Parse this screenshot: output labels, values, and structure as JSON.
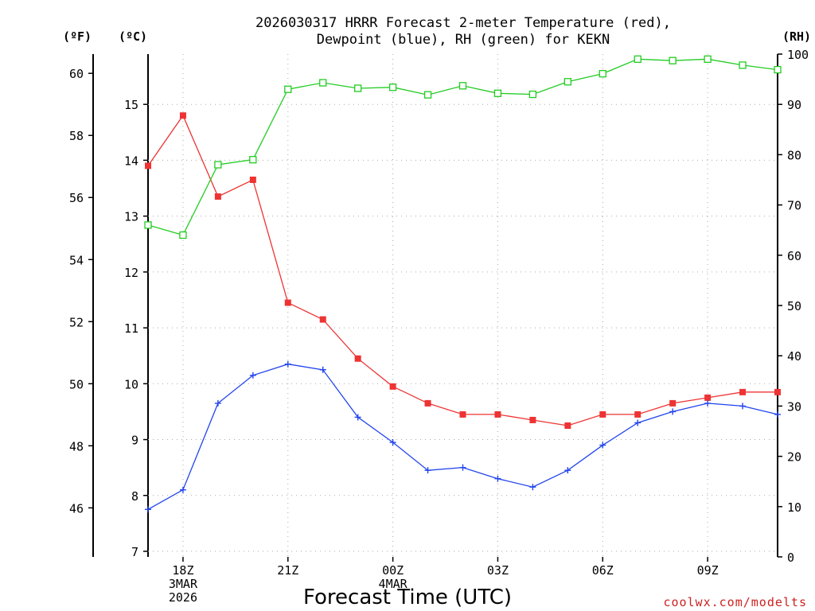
{
  "chart_data": {
    "type": "line",
    "title": [
      "2026030317 HRRR Forecast 2-meter Temperature (red),",
      "Dewpoint (blue), RH (green) for KEKN"
    ],
    "xlabel": "Forecast Time (UTC)",
    "credit": "coolwx.com/modelts",
    "left_axis_unit": "(ºC)",
    "far_left_axis_unit": "(ºF)",
    "right_axis_unit": "(RH)",
    "x_hours": [
      17,
      18,
      19,
      20,
      21,
      22,
      23,
      24,
      25,
      26,
      27,
      28,
      29,
      30,
      31,
      32,
      33,
      34,
      35
    ],
    "xlim": [
      17,
      35
    ],
    "x_ticks": [
      {
        "hour": 18,
        "lines": [
          "18Z",
          "3MAR",
          "2026"
        ]
      },
      {
        "hour": 21,
        "lines": [
          "21Z"
        ]
      },
      {
        "hour": 24,
        "lines": [
          "00Z",
          "4MAR"
        ]
      },
      {
        "hour": 27,
        "lines": [
          "03Z"
        ]
      },
      {
        "hour": 30,
        "lines": [
          "06Z"
        ]
      },
      {
        "hour": 33,
        "lines": [
          "09Z"
        ]
      }
    ],
    "ylim_c": [
      6.9,
      15.9
    ],
    "y_ticks_c": [
      "7",
      "8",
      "9",
      "10",
      "11",
      "12",
      "13",
      "14",
      "15"
    ],
    "y_ticks_f": [
      "46",
      "48",
      "50",
      "52",
      "54",
      "56",
      "58",
      "60"
    ],
    "ylim_rh": [
      0,
      100
    ],
    "y_ticks_rh": [
      "0",
      "10",
      "20",
      "30",
      "40",
      "50",
      "60",
      "70",
      "80",
      "90",
      "100"
    ],
    "series": [
      {
        "name": "Temperature",
        "unit": "C",
        "color": "#ee3333",
        "marker": "filled-square",
        "values": [
          13.9,
          14.8,
          13.35,
          13.65,
          11.45,
          11.15,
          10.45,
          9.95,
          9.65,
          9.45,
          9.45,
          9.35,
          9.25,
          9.45,
          9.45,
          9.65,
          9.75,
          9.85,
          9.85
        ]
      },
      {
        "name": "Dewpoint",
        "unit": "C",
        "color": "#2244ee",
        "marker": "plus",
        "values": [
          7.75,
          8.1,
          9.65,
          10.15,
          10.35,
          10.25,
          9.4,
          8.95,
          8.45,
          8.5,
          8.3,
          8.15,
          8.45,
          8.9,
          9.3,
          9.5,
          9.65,
          9.6,
          9.45
        ]
      },
      {
        "name": "RH",
        "unit": "%",
        "color": "#22cc22",
        "marker": "open-square",
        "values": [
          66,
          64,
          78,
          79,
          93,
          94.3,
          93.2,
          93.4,
          91.9,
          93.7,
          92.2,
          92.0,
          94.5,
          96.1,
          99.0,
          98.7,
          99.0,
          97.8,
          96.9
        ]
      }
    ]
  }
}
